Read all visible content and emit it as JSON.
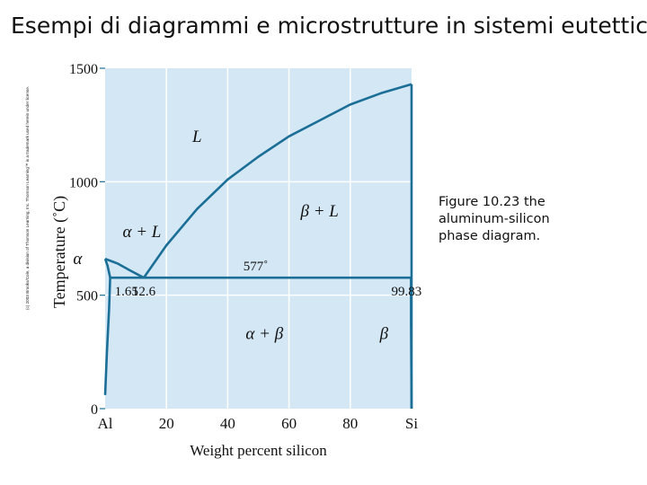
{
  "slide": {
    "title": "Esempi di diagrammi e microstrutture in sistemi eutettici",
    "copyright": "(c) 2003 Brooks/Cole, a division of Thomson Learning, Inc. Thomson Learning™ is a trademark used herein under license.",
    "caption": "Figure 10.23 the aluminum-silicon phase diagram."
  },
  "colors": {
    "plot_background": "#d4e7f5",
    "line": "#1b6f97",
    "grid": "#ffffff"
  },
  "chart_data": {
    "type": "phase-diagram",
    "xlabel": "Weight percent silicon",
    "ylabel": "Temperature (˚C)",
    "xlim": [
      0,
      100
    ],
    "ylim": [
      0,
      1500
    ],
    "x_ticks": [
      {
        "value": 0,
        "label": "Al"
      },
      {
        "value": 20,
        "label": "20"
      },
      {
        "value": 40,
        "label": "40"
      },
      {
        "value": 60,
        "label": "60"
      },
      {
        "value": 80,
        "label": "80"
      },
      {
        "value": 100,
        "label": "Si"
      }
    ],
    "y_ticks": [
      {
        "value": 0,
        "label": "0"
      },
      {
        "value": 500,
        "label": "500"
      },
      {
        "value": 1000,
        "label": "1000"
      },
      {
        "value": 1500,
        "label": "1500"
      }
    ],
    "series": [
      {
        "points": [
          [
            0,
            660
          ],
          [
            4,
            640
          ],
          [
            8,
            610
          ],
          [
            12.6,
            577
          ]
        ]
      },
      {
        "points": [
          [
            12.6,
            577
          ],
          [
            20,
            720
          ],
          [
            30,
            880
          ],
          [
            40,
            1010
          ],
          [
            50,
            1110
          ],
          [
            60,
            1200
          ],
          [
            70,
            1270
          ],
          [
            80,
            1340
          ],
          [
            90,
            1390
          ],
          [
            100,
            1430
          ]
        ]
      },
      {
        "points": [
          [
            0,
            660
          ],
          [
            0.8,
            630
          ],
          [
            1.65,
            577
          ]
        ]
      },
      {
        "points": [
          [
            1.65,
            577
          ],
          [
            1.3,
            440
          ],
          [
            0.6,
            250
          ],
          [
            0,
            60
          ]
        ]
      },
      {
        "points": [
          [
            1.65,
            577
          ],
          [
            99.83,
            577
          ]
        ]
      },
      {
        "points": [
          [
            99.83,
            577
          ],
          [
            99.83,
            380
          ],
          [
            100,
            0
          ]
        ]
      },
      {
        "points": [
          [
            100,
            0
          ],
          [
            100,
            1430
          ]
        ]
      }
    ],
    "eutectic_temperature": 577,
    "annotations": [
      {
        "text": "1.65",
        "x": 1.65
      },
      {
        "text": "12.6",
        "x": 12.6
      },
      {
        "text": "99.83",
        "x": 99.83
      },
      {
        "text": "577˚",
        "x": 50,
        "y": 577
      }
    ],
    "region_labels": [
      {
        "text": "L",
        "x": 30,
        "y": 1200
      },
      {
        "text": "α + L",
        "x": 12,
        "y": 780
      },
      {
        "text": "β + L",
        "x": 70,
        "y": 870
      },
      {
        "text": "α",
        "x": -9,
        "y": 660
      },
      {
        "text": "α + β",
        "x": 52,
        "y": 330
      },
      {
        "text": "β",
        "x": 91,
        "y": 330
      }
    ]
  }
}
